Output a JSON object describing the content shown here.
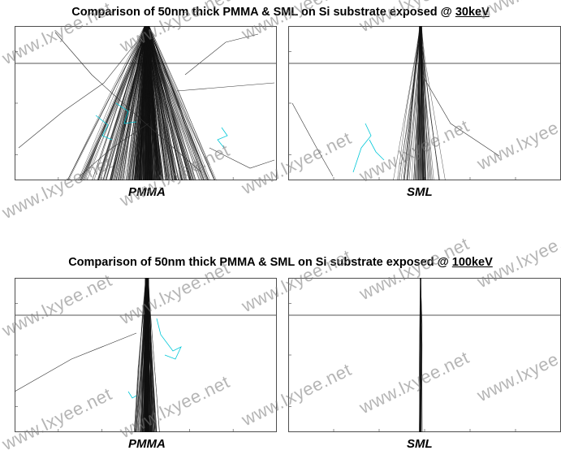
{
  "sections": [
    {
      "title_prefix": "Comparison of 50nm thick PMMA & SML on Si substrate exposed @ ",
      "energy": "30keV",
      "panels": [
        {
          "label": "PMMA"
        },
        {
          "label": "SML"
        }
      ]
    },
    {
      "title_prefix": "Comparison of 50nm thick PMMA & SML on Si substrate exposed @ ",
      "energy": "100keV",
      "panels": [
        {
          "label": "PMMA"
        },
        {
          "label": "SML"
        }
      ]
    }
  ],
  "watermark": "www.lxyee.net",
  "colors": {
    "trajectory": "#111111",
    "backscatter": "#00c8d8",
    "interface": "#555555"
  }
}
